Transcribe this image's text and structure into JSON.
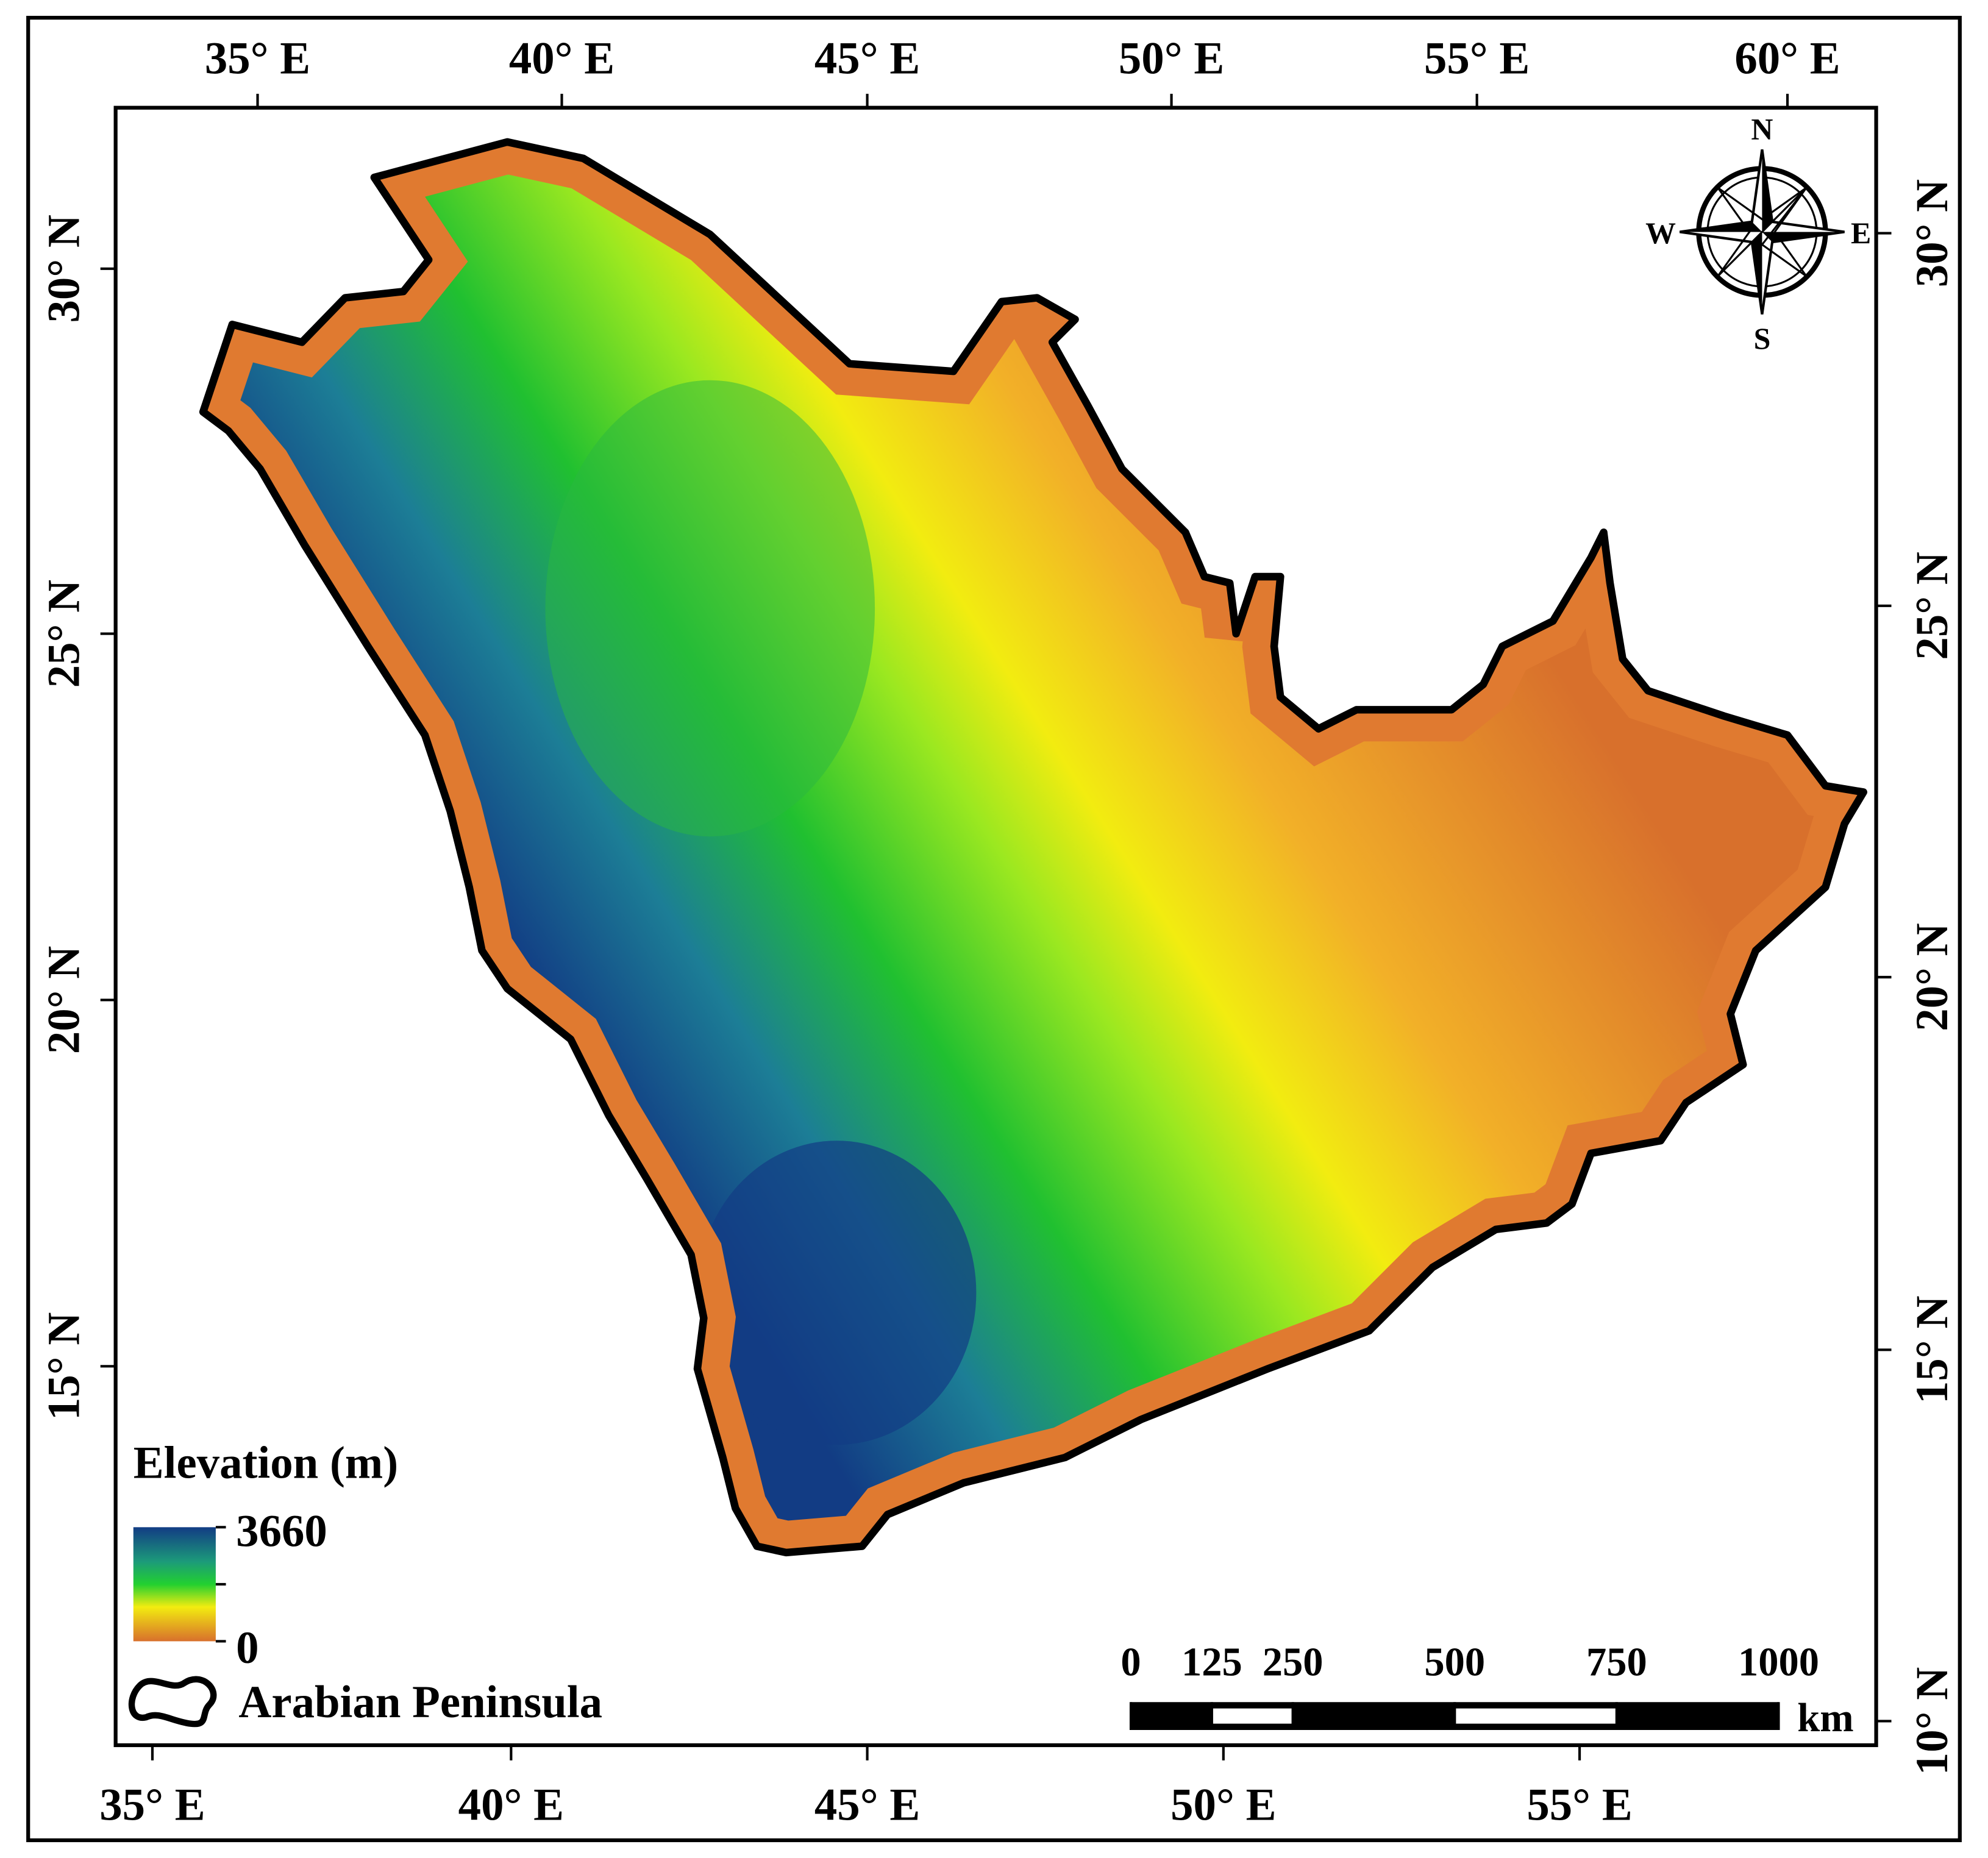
{
  "map": {
    "top_ticks": [
      "35° E",
      "40° E",
      "45° E",
      "50° E",
      "55° E",
      "60° E"
    ],
    "bottom_ticks": [
      "35° E",
      "40° E",
      "45° E",
      "50° E",
      "55° E"
    ],
    "left_ticks": [
      "30° N",
      "25° N",
      "20° N",
      "15° N"
    ],
    "right_ticks": [
      "30° N",
      "25° N",
      "20° N",
      "15° N",
      "10° N"
    ],
    "compass": {
      "n": "N",
      "e": "E",
      "s": "S",
      "w": "W"
    },
    "legend": {
      "title": "Elevation (m)",
      "max": "3660",
      "min": "0",
      "boundary": "Arabian Peninsula"
    },
    "scale_bar": {
      "labels": [
        0,
        125,
        250,
        500,
        750,
        1000
      ],
      "unit": "km"
    }
  }
}
